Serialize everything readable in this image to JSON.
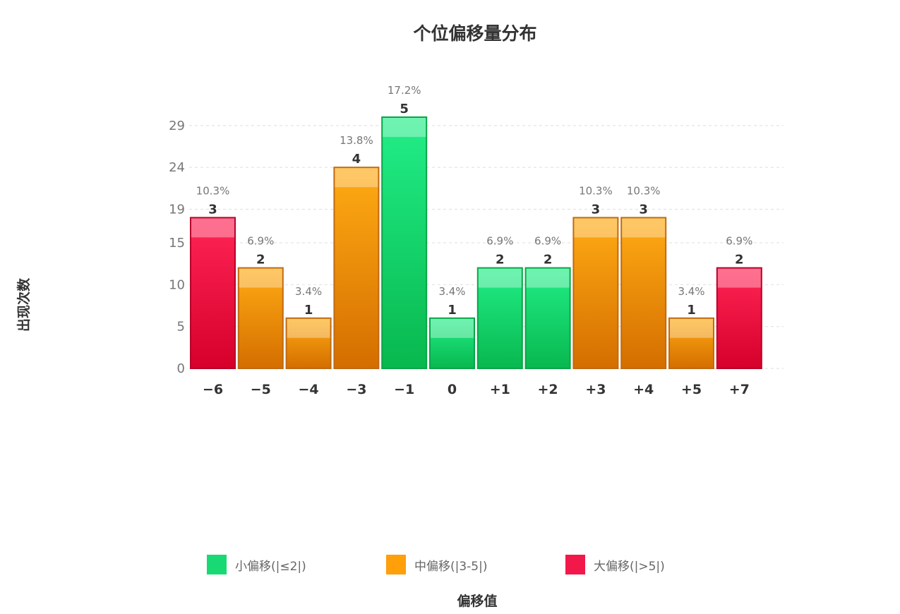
{
  "chart_data": {
    "type": "bar",
    "title": "个位偏移量分布",
    "xlabel": "偏移值",
    "ylabel": "出现次数",
    "categories": [
      "-6",
      "-5",
      "-4",
      "-3",
      "-1",
      "0",
      "+1",
      "+2",
      "+3",
      "+4",
      "+5",
      "+7"
    ],
    "values": [
      18,
      12,
      6,
      24,
      30,
      6,
      12,
      12,
      18,
      18,
      6,
      12
    ],
    "counts": [
      "3",
      "2",
      "1",
      "4",
      "5",
      "1",
      "2",
      "2",
      "3",
      "3",
      "1",
      "2"
    ],
    "percent_labels": [
      "10.3%",
      "6.9%",
      "3.4%",
      "13.8%",
      "17.2%",
      "3.4%",
      "6.9%",
      "6.9%",
      "10.3%",
      "10.3%",
      "3.4%",
      "6.9%"
    ],
    "groups": [
      "large",
      "medium",
      "medium",
      "medium",
      "small",
      "small",
      "small",
      "small",
      "medium",
      "medium",
      "medium",
      "large"
    ],
    "yticks": [
      "0",
      "5",
      "10",
      "15",
      "19",
      "24",
      "29"
    ],
    "ylim": [
      0,
      30
    ],
    "grid": true,
    "legend_position": "bottom",
    "legend": [
      {
        "key": "small",
        "label": "小偏移(|≤2|)",
        "color": "#19d974"
      },
      {
        "key": "medium",
        "label": "中偏移(|3-5|)",
        "color": "#ff9f0a"
      },
      {
        "key": "large",
        "label": "大偏移(|>5|)",
        "color": "#f2194a"
      }
    ],
    "colors": {
      "small": {
        "top": "#22ee88",
        "bottom": "#08b84e",
        "border": "#0aa548"
      },
      "medium": {
        "top": "#ffab14",
        "bottom": "#d46e00",
        "border": "#c06a12"
      },
      "large": {
        "top": "#ff2555",
        "bottom": "#d6002b",
        "border": "#b8002a"
      }
    }
  }
}
